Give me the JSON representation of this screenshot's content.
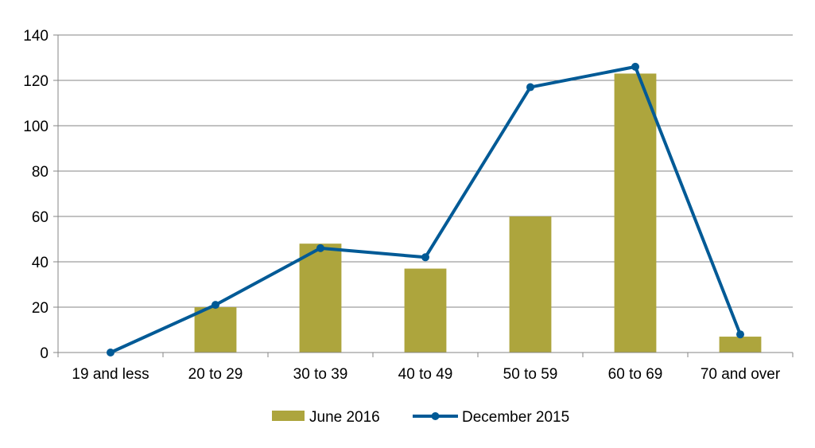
{
  "chart_data": {
    "type": "bar",
    "categories": [
      "19 and less",
      "20 to 29",
      "30 to 39",
      "40 to 49",
      "50 to 59",
      "60 to 69",
      "70 and over"
    ],
    "series": [
      {
        "name": "June 2016",
        "type": "bar",
        "color": "#ADA53D",
        "values": [
          0,
          20,
          48,
          37,
          60,
          123,
          7
        ]
      },
      {
        "name": "December 2015",
        "type": "line",
        "color": "#005A96",
        "values": [
          0,
          21,
          46,
          42,
          117,
          126,
          8
        ]
      }
    ],
    "ylim": [
      0,
      140
    ],
    "yticks": [
      0,
      20,
      40,
      60,
      80,
      100,
      120,
      140
    ],
    "grid": true,
    "legend_position": "bottom",
    "xlabel": "",
    "ylabel": "",
    "title": ""
  }
}
